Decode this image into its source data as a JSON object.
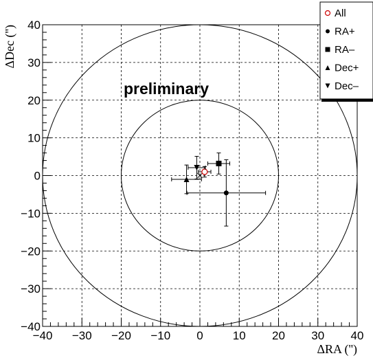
{
  "chart_data": {
    "type": "scatter",
    "xlabel": "ΔRA ('')",
    "ylabel": "ΔDec ('')",
    "xlim": [
      -40,
      40
    ],
    "ylim": [
      -40,
      40
    ],
    "xticks": [
      -40,
      -30,
      -20,
      -10,
      0,
      10,
      20,
      30,
      40
    ],
    "yticks": [
      -40,
      -30,
      -20,
      -10,
      0,
      10,
      20,
      30,
      40
    ],
    "grid": true,
    "legend_position": "top-right",
    "annotation": "preliminary",
    "circles": [
      {
        "radius": 20
      },
      {
        "radius": 40
      }
    ],
    "series": [
      {
        "name": "All",
        "marker": "circle-open",
        "color": "#cc0000",
        "points": [
          {
            "x": 1.2,
            "y": 1.0,
            "xerr": [
              1.6,
              1.6
            ],
            "yerr": [
              1.4,
              1.4
            ]
          }
        ]
      },
      {
        "name": "RA+",
        "marker": "circle",
        "color": "#000000",
        "points": [
          {
            "x": 6.7,
            "y": -4.6,
            "xerr": [
              10.0,
              10.0
            ],
            "yerr": [
              8.8,
              8.8
            ]
          }
        ]
      },
      {
        "name": "RA–",
        "marker": "square",
        "color": "#000000",
        "points": [
          {
            "x": 4.8,
            "y": 3.2,
            "xerr": [
              2.8,
              2.8
            ],
            "yerr": [
              2.8,
              2.8
            ]
          }
        ]
      },
      {
        "name": "Dec+",
        "marker": "triangle-up",
        "color": "#000000",
        "points": [
          {
            "x": -3.4,
            "y": -1.0,
            "xerr": [
              3.8,
              3.8
            ],
            "yerr": [
              3.8,
              3.8
            ]
          }
        ]
      },
      {
        "name": "Dec–",
        "marker": "triangle-down",
        "color": "#000000",
        "points": [
          {
            "x": -0.8,
            "y": 2.1,
            "xerr": [
              2.2,
              2.2
            ],
            "yerr": [
              3.0,
              3.0
            ]
          }
        ]
      }
    ],
    "extra_marks": [
      {
        "marker": "x-cross",
        "x": 0.0,
        "y": 0.0
      }
    ]
  }
}
